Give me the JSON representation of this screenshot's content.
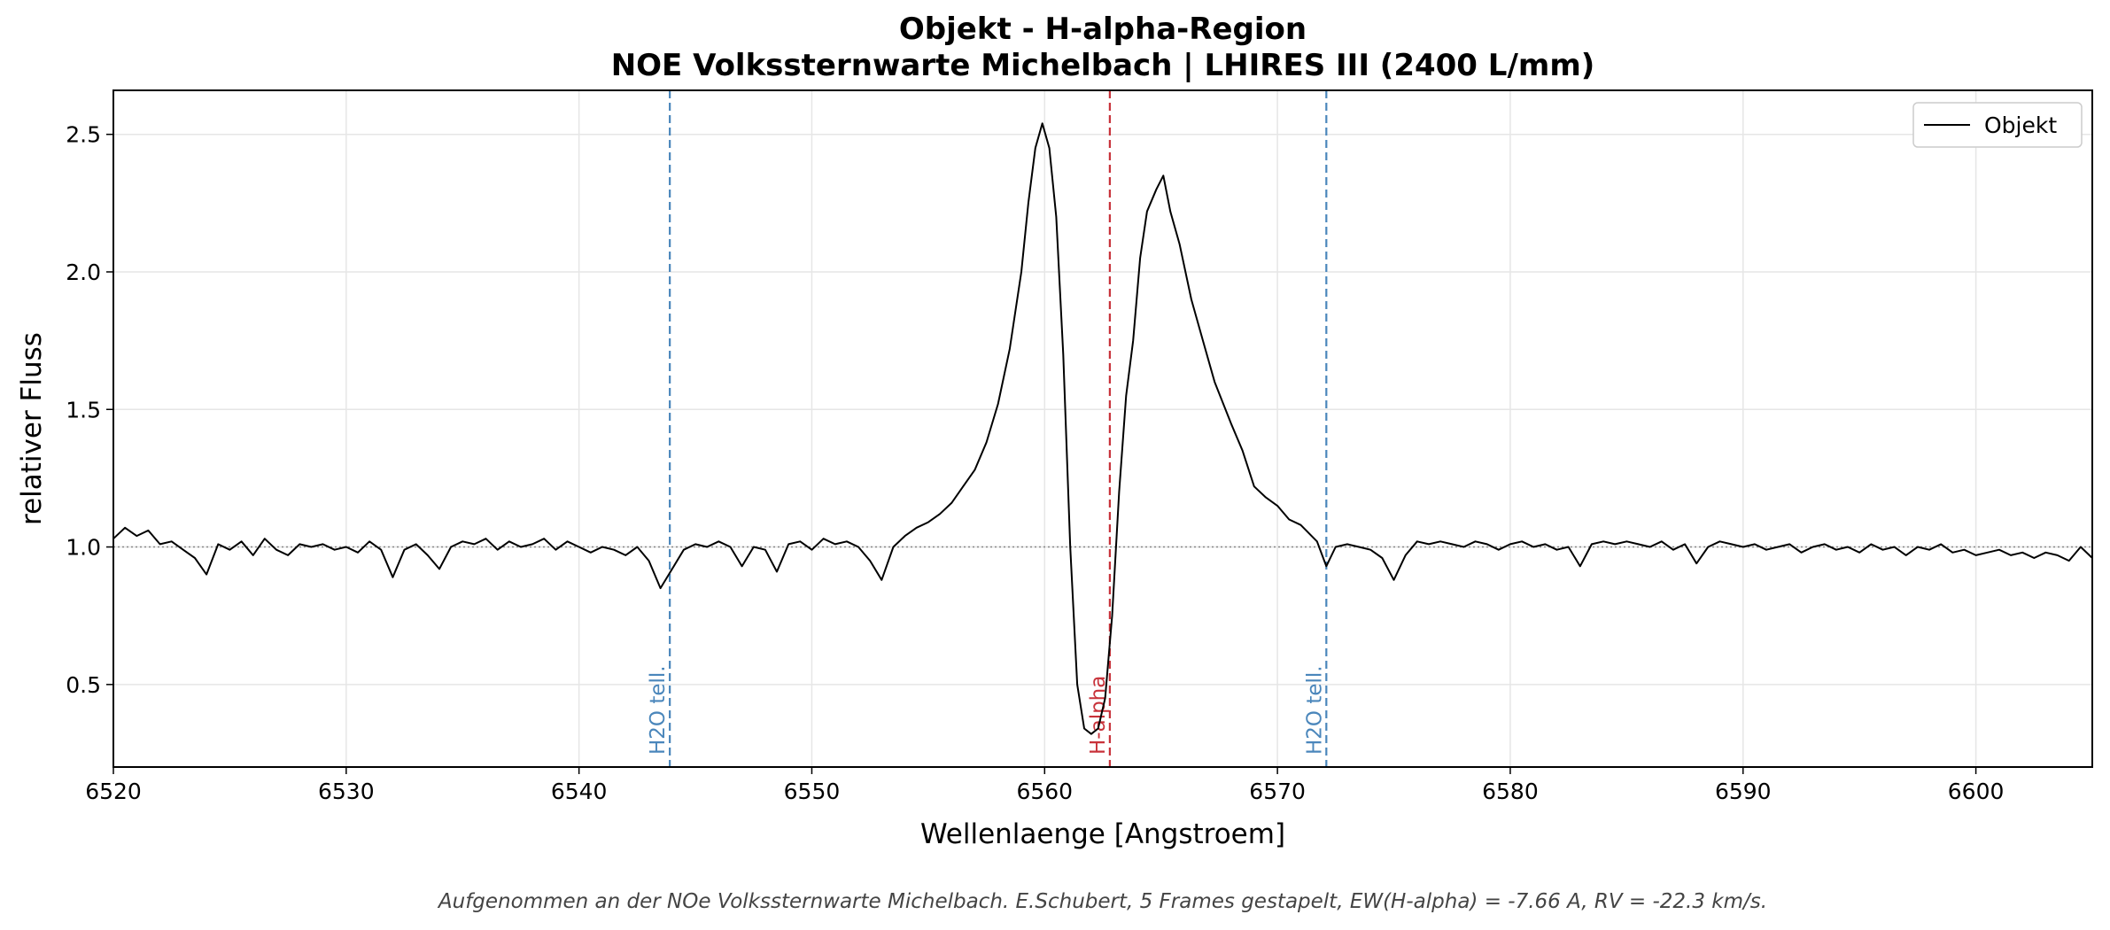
{
  "chart_data": {
    "type": "line",
    "title": "Objekt - H-alpha-Region",
    "subtitle": "NOE Volkssternwarte Michelbach  |  LHIRES III (2400 L/mm)",
    "xlabel": "Wellenlaenge  [Angstroem]",
    "ylabel": "relativer Fluss",
    "caption": "Aufgenommen an der NOe Volkssternwarte Michelbach. E.Schubert, 5 Frames gestapelt, EW(H-alpha) = -7.66 A, RV = -22.3 km/s.",
    "x": [
      6520,
      6520.5,
      6521,
      6521.5,
      6522,
      6522.5,
      6523,
      6523.5,
      6524,
      6524.5,
      6525,
      6525.5,
      6526,
      6526.5,
      6527,
      6527.5,
      6528,
      6528.5,
      6529,
      6529.5,
      6530,
      6530.5,
      6531,
      6531.5,
      6532,
      6532.5,
      6533,
      6533.5,
      6534,
      6534.5,
      6535,
      6535.5,
      6536,
      6536.5,
      6537,
      6537.5,
      6538,
      6538.5,
      6539,
      6539.5,
      6540,
      6540.5,
      6541,
      6541.5,
      6542,
      6542.5,
      6543,
      6543.5,
      6544,
      6544.5,
      6545,
      6545.5,
      6546,
      6546.5,
      6547,
      6547.5,
      6548,
      6548.5,
      6549,
      6549.5,
      6550,
      6550.5,
      6551,
      6551.5,
      6552,
      6552.5,
      6553,
      6553.5,
      6554,
      6554.5,
      6555,
      6555.5,
      6556,
      6556.5,
      6557,
      6557.5,
      6558,
      6558.5,
      6559,
      6559.3,
      6559.6,
      6559.9,
      6560.2,
      6560.5,
      6560.8,
      6561.1,
      6561.4,
      6561.7,
      6562,
      6562.3,
      6562.6,
      6562.9,
      6563.2,
      6563.5,
      6563.8,
      6564.1,
      6564.4,
      6564.8,
      6565.1,
      6565.4,
      6565.8,
      6566.3,
      6566.8,
      6567.3,
      6568,
      6568.5,
      6569,
      6569.5,
      6570,
      6570.5,
      6571,
      6571.7,
      6572.1,
      6572.5,
      6573,
      6573.5,
      6574,
      6574.5,
      6575,
      6575.5,
      6576,
      6576.5,
      6577,
      6577.5,
      6578,
      6578.5,
      6579,
      6579.5,
      6580,
      6580.5,
      6581,
      6581.5,
      6582,
      6582.5,
      6583,
      6583.5,
      6584,
      6584.5,
      6585,
      6585.5,
      6586,
      6586.5,
      6587,
      6587.5,
      6588,
      6588.5,
      6589,
      6589.5,
      6590,
      6590.5,
      6591,
      6591.5,
      6592,
      6592.5,
      6593,
      6593.5,
      6594,
      6594.5,
      6595,
      6595.5,
      6596,
      6596.5,
      6597,
      6597.5,
      6598,
      6598.5,
      6599,
      6599.5,
      6600,
      6600.5,
      6601,
      6601.5,
      6602,
      6602.5,
      6603,
      6603.5,
      6604,
      6604.5,
      6605
    ],
    "series": [
      {
        "name": "Objekt",
        "color": "#000000",
        "values": [
          1.03,
          1.07,
          1.04,
          1.06,
          1.01,
          1.02,
          0.99,
          0.96,
          0.9,
          1.01,
          0.99,
          1.02,
          0.97,
          1.03,
          0.99,
          0.97,
          1.01,
          1.0,
          1.01,
          0.99,
          1.0,
          0.98,
          1.02,
          0.99,
          0.89,
          0.99,
          1.01,
          0.97,
          0.92,
          1.0,
          1.02,
          1.01,
          1.03,
          0.99,
          1.02,
          1.0,
          1.01,
          1.03,
          0.99,
          1.02,
          1.0,
          0.98,
          1.0,
          0.99,
          0.97,
          1.0,
          0.95,
          0.85,
          0.92,
          0.99,
          1.01,
          1.0,
          1.02,
          1.0,
          0.93,
          1.0,
          0.99,
          0.91,
          1.01,
          1.02,
          0.99,
          1.03,
          1.01,
          1.02,
          1.0,
          0.95,
          0.88,
          1.0,
          1.04,
          1.07,
          1.09,
          1.12,
          1.16,
          1.22,
          1.28,
          1.38,
          1.52,
          1.72,
          2.0,
          2.25,
          2.45,
          2.54,
          2.45,
          2.2,
          1.7,
          1.0,
          0.5,
          0.34,
          0.32,
          0.34,
          0.45,
          0.75,
          1.2,
          1.55,
          1.75,
          2.05,
          2.22,
          2.3,
          2.35,
          2.22,
          2.1,
          1.9,
          1.75,
          1.6,
          1.45,
          1.35,
          1.22,
          1.18,
          1.15,
          1.1,
          1.08,
          1.02,
          0.93,
          1.0,
          1.01,
          1.0,
          0.99,
          0.96,
          0.88,
          0.97,
          1.02,
          1.01,
          1.02,
          1.01,
          1.0,
          1.02,
          1.01,
          0.99,
          1.01,
          1.02,
          1.0,
          1.01,
          0.99,
          1.0,
          0.93,
          1.01,
          1.02,
          1.01,
          1.02,
          1.01,
          1.0,
          1.02,
          0.99,
          1.01,
          0.94,
          1.0,
          1.02,
          1.01,
          1.0,
          1.01,
          0.99,
          1.0,
          1.01,
          0.98,
          1.0,
          1.01,
          0.99,
          1.0,
          0.98,
          1.01,
          0.99,
          1.0,
          0.97,
          1.0,
          0.99,
          1.01,
          0.98,
          0.99,
          0.97,
          0.98,
          0.99,
          0.97,
          0.98,
          0.96,
          0.98,
          0.97,
          0.95,
          1.0,
          0.96
        ]
      }
    ],
    "xlim": [
      6520,
      6605
    ],
    "ylim": [
      0.2,
      2.66
    ],
    "xticks": [
      6520,
      6530,
      6540,
      6550,
      6560,
      6570,
      6580,
      6590,
      6600
    ],
    "yticks": [
      0.5,
      {
        "value": 1,
        "label": "1.0"
      },
      1.5,
      {
        "value": 2,
        "label": "2.0"
      },
      2.5
    ],
    "grid": true,
    "legend": "upper right",
    "hline": 1,
    "vlines": [
      {
        "x": 6543.9,
        "label": "H2O tell.",
        "color": "#4a86bb"
      },
      {
        "x": 6562.8,
        "label": "H-alpha",
        "color": "#c8323a"
      },
      {
        "x": 6572.1,
        "label": "H2O tell.",
        "color": "#4a86bb"
      }
    ]
  }
}
